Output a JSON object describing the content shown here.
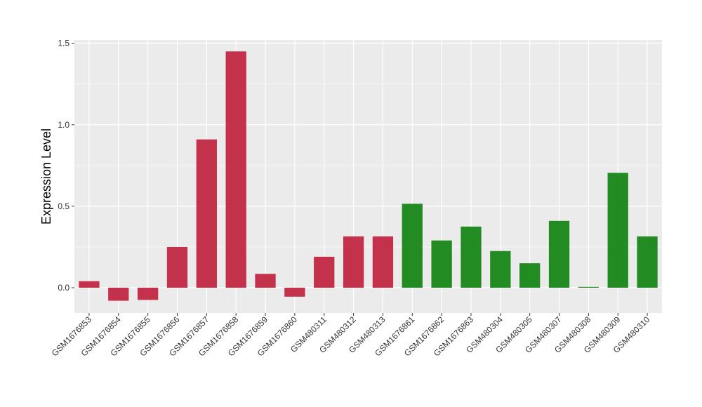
{
  "chart_data": {
    "type": "bar",
    "title": "",
    "xlabel": "",
    "ylabel": "Expression Level",
    "ylim": [
      -0.155,
      1.52
    ],
    "yticks": [
      0.0,
      0.5,
      1.0,
      1.5
    ],
    "ytick_labels": [
      "0.0",
      "0.5",
      "1.0",
      "1.5"
    ],
    "grid": true,
    "legend": "none",
    "colors": {
      "group1": "#c4314b",
      "group2": "#228b22",
      "panel_bg": "#ebebeb",
      "grid": "#ffffff"
    },
    "categories": [
      "GSM1676853",
      "GSM1676854",
      "GSM1676855",
      "GSM1676856",
      "GSM1676857",
      "GSM1676858",
      "GSM1676859",
      "GSM1676860",
      "GSM480311",
      "GSM480312",
      "GSM480313",
      "GSM1676861",
      "GSM1676862",
      "GSM1676863",
      "GSM480304",
      "GSM480305",
      "GSM480307",
      "GSM480308",
      "GSM480309",
      "GSM480310"
    ],
    "values": [
      0.04,
      -0.08,
      -0.075,
      0.25,
      0.91,
      1.45,
      0.085,
      -0.055,
      0.19,
      0.315,
      0.315,
      0.515,
      0.29,
      0.375,
      0.225,
      0.15,
      0.41,
      0.005,
      0.705,
      0.315
    ],
    "groups": [
      "group1",
      "group1",
      "group1",
      "group1",
      "group1",
      "group1",
      "group1",
      "group1",
      "group1",
      "group1",
      "group1",
      "group2",
      "group2",
      "group2",
      "group2",
      "group2",
      "group2",
      "group2",
      "group2",
      "group2"
    ]
  }
}
